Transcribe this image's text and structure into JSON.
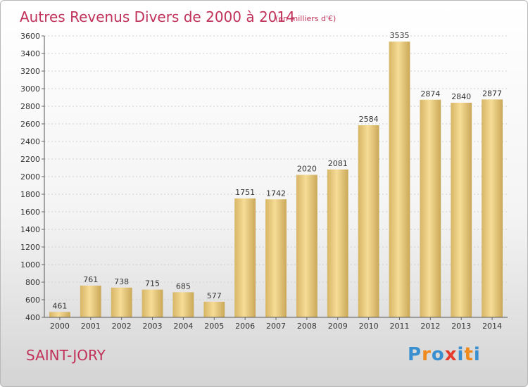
{
  "chart_data": {
    "type": "bar",
    "title": "Autres Revenus Divers de 2000 à 2014",
    "subtitle": "(en milliers d'€)",
    "categories": [
      "2000",
      "2001",
      "2002",
      "2003",
      "2004",
      "2005",
      "2006",
      "2007",
      "2008",
      "2009",
      "2010",
      "2011",
      "2012",
      "2013",
      "2014"
    ],
    "values": [
      461,
      761,
      738,
      715,
      685,
      577,
      1751,
      1742,
      2020,
      2081,
      2584,
      3535,
      2874,
      2840,
      2877
    ],
    "ylim": [
      400,
      3600
    ],
    "yticks": [
      400,
      600,
      800,
      1000,
      1200,
      1400,
      1600,
      1800,
      2000,
      2200,
      2400,
      2600,
      2800,
      3000,
      3200,
      3400,
      3600
    ],
    "grid": true,
    "bar_color": "#e6c87a"
  },
  "footer": {
    "place": "SAINT-JORY",
    "logo": [
      "P",
      "r",
      "o",
      "x",
      "i",
      "t",
      "i"
    ],
    "logo_colors": [
      "#3a8fd0",
      "#f08a1c",
      "#3a8fd0",
      "#e53b2c",
      "#3a8fd0",
      "#f08a1c",
      "#3a8fd0"
    ]
  }
}
